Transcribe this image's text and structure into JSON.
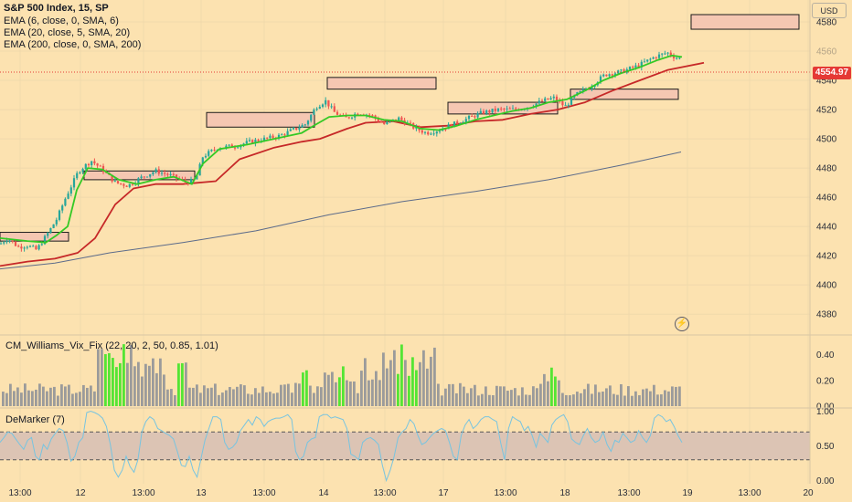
{
  "header": {
    "symbol": "S&P 500 Index, 15, SP",
    "currency_button": "USD"
  },
  "legend": [
    "EMA (6, close, 0, SMA, 6)",
    "EMA (20, close, 5, SMA, 20)",
    "EMA (200, close, 0, SMA, 200)"
  ],
  "last_price": "4554.97",
  "colors": {
    "background": "#fce2b0",
    "up_candle": "#26a69a",
    "down_candle": "#ef5350",
    "ema6": "#34c925",
    "ema20": "#c62828",
    "ema200": "#5c6b8a",
    "vix_green": "#54e534",
    "vix_gray": "#9b9b9b",
    "demarker": "#78c4e0",
    "demarker_band": "#dcc4b4",
    "zone_fill": "#f5c7b2"
  },
  "chart_data": [
    {
      "type": "candlestick",
      "title": "S&P 500 Index, 15, SP",
      "y_axis_ticks": [
        4380,
        4400,
        4420,
        4440,
        4460,
        4480,
        4500,
        4520,
        4540,
        4560,
        4580
      ],
      "ylim": [
        4367,
        4595
      ],
      "x_axis_ticks": [
        "13:00",
        "12",
        "13:00",
        "13",
        "13:00",
        "14",
        "13:00",
        "17",
        "13:00",
        "18",
        "13:00",
        "19",
        "13:00",
        "20"
      ],
      "last_price": 4554.97,
      "ohlc_anchor_closes": [
        [
          0,
          4428
        ],
        [
          8,
          4432
        ],
        [
          20,
          4426
        ],
        [
          30,
          4427
        ],
        [
          40,
          4424
        ],
        [
          52,
          4435
        ],
        [
          62,
          4445
        ],
        [
          72,
          4460
        ],
        [
          86,
          4478
        ],
        [
          100,
          4485
        ],
        [
          112,
          4479
        ],
        [
          126,
          4470
        ],
        [
          140,
          4468
        ],
        [
          156,
          4474
        ],
        [
          170,
          4478
        ],
        [
          186,
          4475
        ],
        [
          204,
          4470
        ],
        [
          214,
          4472
        ],
        [
          222,
          4488
        ],
        [
          238,
          4494
        ],
        [
          256,
          4495
        ],
        [
          274,
          4498
        ],
        [
          290,
          4500
        ],
        [
          306,
          4502
        ],
        [
          320,
          4506
        ],
        [
          334,
          4510
        ],
        [
          346,
          4522
        ],
        [
          356,
          4526
        ],
        [
          366,
          4518
        ],
        [
          378,
          4514
        ],
        [
          392,
          4518
        ],
        [
          406,
          4516
        ],
        [
          420,
          4510
        ],
        [
          436,
          4514
        ],
        [
          452,
          4508
        ],
        [
          466,
          4504
        ],
        [
          480,
          4506
        ],
        [
          496,
          4510
        ],
        [
          512,
          4514
        ],
        [
          528,
          4518
        ],
        [
          546,
          4520
        ],
        [
          562,
          4520
        ],
        [
          578,
          4522
        ],
        [
          594,
          4526
        ],
        [
          606,
          4528
        ],
        [
          618,
          4522
        ],
        [
          630,
          4530
        ],
        [
          646,
          4536
        ],
        [
          662,
          4544
        ],
        [
          680,
          4546
        ],
        [
          698,
          4550
        ],
        [
          716,
          4556
        ],
        [
          730,
          4559
        ],
        [
          738,
          4556
        ],
        [
          744,
          4554.97
        ]
      ],
      "series": [
        {
          "name": "EMA (6, close, 0, SMA, 6)",
          "points": [
            [
              0,
              4432
            ],
            [
              30,
              4430
            ],
            [
              50,
              4429
            ],
            [
              62,
              4434
            ],
            [
              74,
              4440
            ],
            [
              84,
              4465
            ],
            [
              96,
              4480
            ],
            [
              112,
              4479
            ],
            [
              130,
              4472
            ],
            [
              150,
              4469
            ],
            [
              170,
              4472
            ],
            [
              190,
              4474
            ],
            [
              210,
              4469
            ],
            [
              222,
              4483
            ],
            [
              240,
              4493
            ],
            [
              270,
              4496
            ],
            [
              300,
              4500
            ],
            [
              330,
              4504
            ],
            [
              346,
              4510
            ],
            [
              360,
              4515
            ],
            [
              380,
              4516
            ],
            [
              400,
              4516
            ],
            [
              420,
              4513
            ],
            [
              440,
              4512
            ],
            [
              460,
              4507
            ],
            [
              480,
              4506
            ],
            [
              500,
              4509
            ],
            [
              520,
              4513
            ],
            [
              540,
              4516
            ],
            [
              560,
              4519
            ],
            [
              580,
              4521
            ],
            [
              600,
              4525
            ],
            [
              620,
              4527
            ],
            [
              640,
              4533
            ],
            [
              660,
              4540
            ],
            [
              680,
              4545
            ],
            [
              700,
              4549
            ],
            [
              720,
              4554
            ],
            [
              735,
              4557
            ],
            [
              746,
              4556
            ]
          ]
        },
        {
          "name": "EMA (20, close, 5, SMA, 20)",
          "points": [
            [
              0,
              4413
            ],
            [
              30,
              4416
            ],
            [
              60,
              4418
            ],
            [
              85,
              4422
            ],
            [
              104,
              4432
            ],
            [
              126,
              4455
            ],
            [
              146,
              4466
            ],
            [
              170,
              4469
            ],
            [
              200,
              4469
            ],
            [
              236,
              4471
            ],
            [
              262,
              4486
            ],
            [
              300,
              4494
            ],
            [
              330,
              4498
            ],
            [
              350,
              4500
            ],
            [
              380,
              4507
            ],
            [
              400,
              4511
            ],
            [
              430,
              4512
            ],
            [
              460,
              4508
            ],
            [
              490,
              4509
            ],
            [
              520,
              4512
            ],
            [
              550,
              4513
            ],
            [
              580,
              4517
            ],
            [
              610,
              4520
            ],
            [
              640,
              4525
            ],
            [
              670,
              4533
            ],
            [
              700,
              4540
            ],
            [
              730,
              4547
            ],
            [
              770,
              4552
            ]
          ]
        },
        {
          "name": "EMA (200, close, 0, SMA, 200)",
          "points": [
            [
              0,
              4411
            ],
            [
              60,
              4415
            ],
            [
              120,
              4422
            ],
            [
              200,
              4429
            ],
            [
              280,
              4437
            ],
            [
              360,
              4448
            ],
            [
              440,
              4457
            ],
            [
              520,
              4464
            ],
            [
              600,
              4472
            ],
            [
              680,
              4482
            ],
            [
              745,
              4491
            ]
          ]
        }
      ],
      "zones": [
        {
          "x0": 0,
          "x1": 75,
          "y_top": 4436,
          "y_bot": 4430
        },
        {
          "x0": 92,
          "x1": 213,
          "y_top": 4478,
          "y_bot": 4472
        },
        {
          "x0": 226,
          "x1": 344,
          "y_top": 4518,
          "y_bot": 4508
        },
        {
          "x0": 358,
          "x1": 477,
          "y_top": 4542,
          "y_bot": 4534
        },
        {
          "x0": 490,
          "x1": 610,
          "y_top": 4525,
          "y_bot": 4517
        },
        {
          "x0": 624,
          "x1": 742,
          "y_top": 4534,
          "y_bot": 4527
        },
        {
          "x0": 756,
          "x1": 874,
          "y_top": 4585,
          "y_bot": 4575
        }
      ]
    },
    {
      "type": "bar",
      "title": "CM_Williams_Vix_Fix (22, 20, 2, 50, 0.85, 1.01)",
      "y_axis_ticks": [
        "0.00",
        "0.20",
        "0.40"
      ],
      "ylim": [
        0,
        0.54
      ],
      "green_bar_indices": [
        28,
        29,
        30,
        31,
        32,
        33,
        48,
        49,
        82,
        83,
        92,
        93,
        108,
        109,
        111,
        112,
        113,
        150,
        151
      ]
    },
    {
      "type": "line",
      "title": "DeMarker (7)",
      "y_axis_ticks": [
        "0.00",
        "0.50",
        "1.00"
      ],
      "ylim": [
        -0.02,
        1.02
      ],
      "band": [
        0.3,
        0.7
      ],
      "values": [
        0.55,
        0.62,
        0.7,
        0.68,
        0.6,
        0.52,
        0.45,
        0.58,
        0.62,
        0.35,
        0.3,
        0.52,
        0.45,
        0.6,
        0.68,
        0.75,
        0.72,
        0.55,
        0.28,
        0.35,
        0.55,
        0.62,
        0.98,
        1.0,
        0.98,
        0.95,
        0.9,
        0.78,
        0.52,
        0.15,
        0.05,
        0.15,
        0.35,
        0.2,
        0.12,
        0.3,
        0.7,
        0.85,
        0.92,
        0.88,
        0.75,
        0.72,
        0.68,
        0.65,
        0.6,
        0.42,
        0.22,
        0.2,
        0.35,
        0.15,
        0.05,
        0.32,
        0.58,
        0.75,
        0.92,
        0.92,
        0.88,
        0.55,
        0.45,
        0.48,
        0.55,
        0.72,
        0.8,
        0.88,
        0.8,
        0.92,
        0.88,
        0.78,
        0.85,
        0.88,
        0.9,
        0.9,
        0.92,
        0.95,
        0.88,
        0.42,
        0.3,
        0.35,
        0.55,
        0.6,
        0.62,
        0.92,
        0.95,
        0.95,
        0.9,
        0.92,
        0.9,
        0.88,
        0.75,
        0.38,
        0.35,
        0.3,
        0.55,
        0.6,
        0.62,
        0.58,
        0.52,
        0.22,
        0.0,
        0.15,
        0.35,
        0.62,
        0.7,
        0.75,
        0.88,
        0.82,
        0.65,
        0.52,
        0.55,
        0.62,
        0.68,
        0.72,
        0.75,
        0.72,
        0.55,
        0.35,
        0.3,
        0.65,
        0.8,
        0.88,
        0.75,
        0.8,
        0.88,
        0.92,
        0.92,
        0.88,
        0.85,
        0.55,
        0.3,
        0.75,
        0.92,
        0.88,
        0.85,
        0.72,
        0.78,
        0.65,
        0.48,
        0.68,
        0.62,
        0.55,
        0.8,
        0.88,
        0.92,
        0.95,
        0.85,
        0.6,
        0.55,
        0.52,
        0.65,
        0.75,
        0.62,
        0.55,
        0.58,
        0.7,
        0.52,
        0.42,
        0.58,
        0.55,
        0.68,
        0.62,
        0.55,
        0.58,
        0.72,
        0.62,
        0.55,
        0.65,
        0.9,
        0.95,
        0.92,
        0.85,
        0.88,
        0.78,
        0.65,
        0.55
      ]
    }
  ]
}
